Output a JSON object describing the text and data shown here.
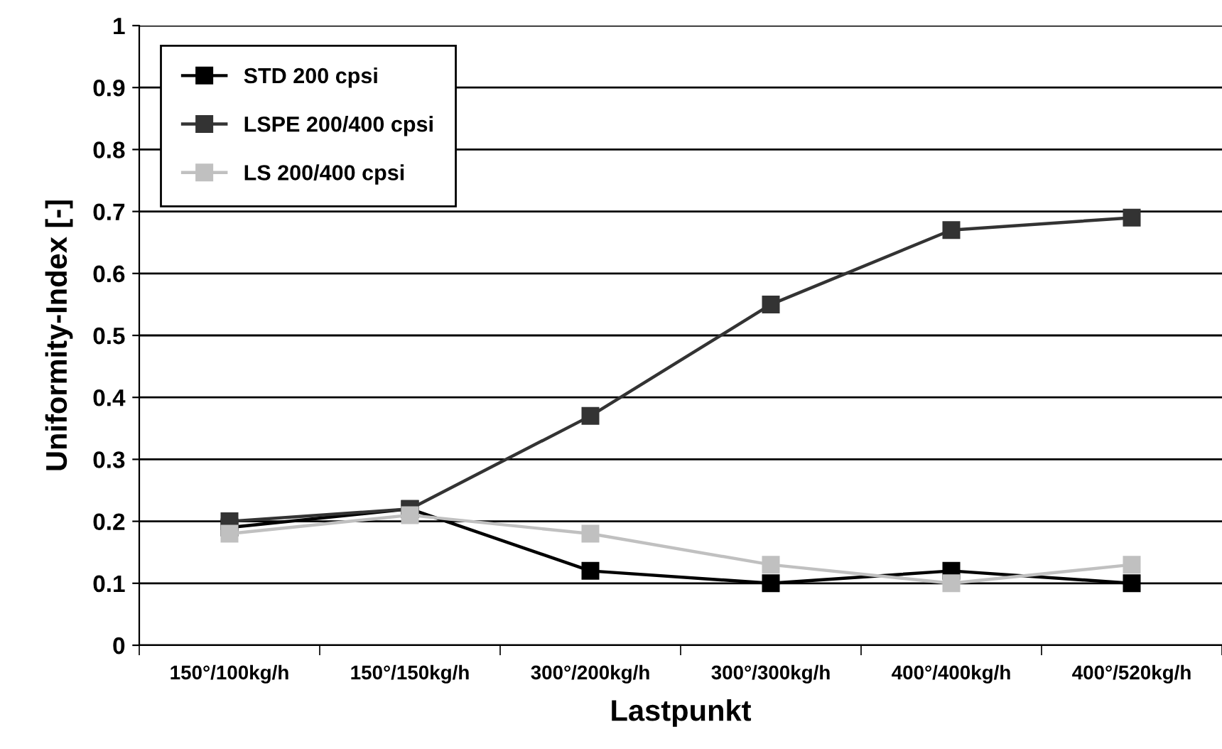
{
  "chart_data": {
    "type": "line",
    "xlabel": "Lastpunkt",
    "ylabel": "Uniformity-Index [-]",
    "categories": [
      "150°/100kg/h",
      "150°/150kg/h",
      "300°/200kg/h",
      "300°/300kg/h",
      "400°/400kg/h",
      "400°/520kg/h"
    ],
    "series": [
      {
        "name": "STD 200 cpsi",
        "color": "#000000",
        "values": [
          0.19,
          0.22,
          0.12,
          0.1,
          0.12,
          0.1
        ]
      },
      {
        "name": "LSPE 200/400 cpsi",
        "color": "#333333",
        "values": [
          0.2,
          0.22,
          0.37,
          0.55,
          0.67,
          0.69
        ]
      },
      {
        "name": "LS 200/400 cpsi",
        "color": "#c0c0c0",
        "values": [
          0.18,
          0.21,
          0.18,
          0.13,
          0.1,
          0.13
        ]
      }
    ],
    "ylim": [
      0,
      1
    ],
    "yticks": [
      0,
      0.1,
      0.2,
      0.3,
      0.4,
      0.5,
      0.6,
      0.7,
      0.8,
      0.9,
      1
    ],
    "grid": "y",
    "legend": "top left",
    "marker": "square",
    "line_style": "solid"
  }
}
